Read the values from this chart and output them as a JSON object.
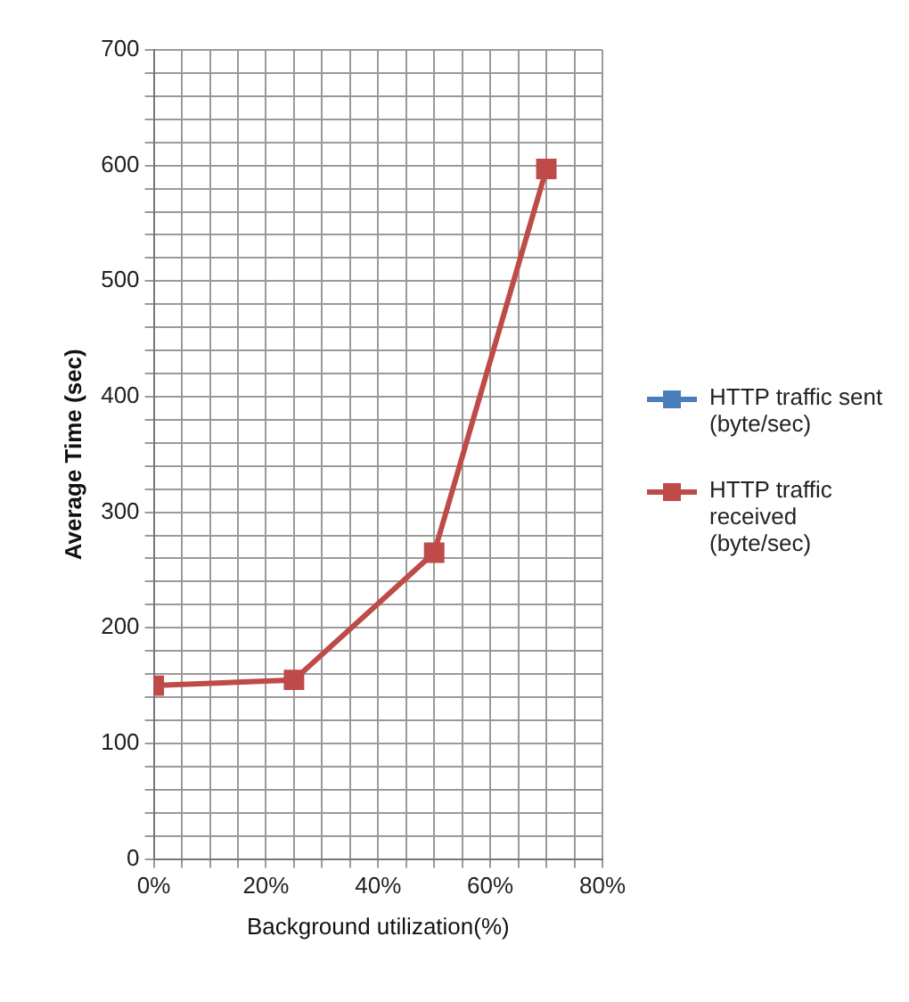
{
  "chart_data": {
    "type": "line",
    "xlabel": "Background utilization(%)",
    "ylabel": "Average Time (sec)",
    "x": [
      0,
      25,
      50,
      70
    ],
    "series": [
      {
        "name": "HTTP traffic sent (byte/sec)",
        "color": "#4a7ebb",
        "values": [
          null,
          null,
          null,
          null
        ]
      },
      {
        "name": "HTTP traffic received (byte/sec)",
        "color": "#be4b48",
        "values": [
          150,
          155,
          265,
          597
        ]
      }
    ],
    "xlim": [
      0,
      80
    ],
    "xticks": [
      {
        "value": 0,
        "label": "0%"
      },
      {
        "value": 5,
        "label": null
      },
      {
        "value": 10,
        "label": null
      },
      {
        "value": 15,
        "label": null
      },
      {
        "value": 20,
        "label": "20%"
      },
      {
        "value": 25,
        "label": null
      },
      {
        "value": 30,
        "label": null
      },
      {
        "value": 35,
        "label": null
      },
      {
        "value": 40,
        "label": "40%"
      },
      {
        "value": 45,
        "label": null
      },
      {
        "value": 50,
        "label": null
      },
      {
        "value": 55,
        "label": null
      },
      {
        "value": 60,
        "label": "60%"
      },
      {
        "value": 65,
        "label": null
      },
      {
        "value": 70,
        "label": null
      },
      {
        "value": 75,
        "label": null
      },
      {
        "value": 80,
        "label": "80%"
      }
    ],
    "ylim": [
      0,
      700
    ],
    "yticks": [
      0,
      {
        "value": 20,
        "label": null
      },
      {
        "value": 40,
        "label": null
      },
      {
        "value": 60,
        "label": null
      },
      {
        "value": 80,
        "label": null
      },
      100,
      {
        "value": 120,
        "label": null
      },
      {
        "value": 140,
        "label": null
      },
      {
        "value": 160,
        "label": null
      },
      {
        "value": 180,
        "label": null
      },
      200,
      {
        "value": 220,
        "label": null
      },
      {
        "value": 240,
        "label": null
      },
      {
        "value": 260,
        "label": null
      },
      {
        "value": 280,
        "label": null
      },
      300,
      {
        "value": 320,
        "label": null
      },
      {
        "value": 340,
        "label": null
      },
      {
        "value": 360,
        "label": null
      },
      {
        "value": 380,
        "label": null
      },
      400,
      {
        "value": 420,
        "label": null
      },
      {
        "value": 440,
        "label": null
      },
      {
        "value": 460,
        "label": null
      },
      {
        "value": 480,
        "label": null
      },
      500,
      {
        "value": 520,
        "label": null
      },
      {
        "value": 540,
        "label": null
      },
      {
        "value": 560,
        "label": null
      },
      {
        "value": 580,
        "label": null
      },
      600,
      {
        "value": 620,
        "label": null
      },
      {
        "value": 640,
        "label": null
      },
      {
        "value": 660,
        "label": null
      },
      {
        "value": 680,
        "label": null
      },
      700
    ],
    "grid": true,
    "legend": "right",
    "marker": "square",
    "line_style": "solid"
  }
}
